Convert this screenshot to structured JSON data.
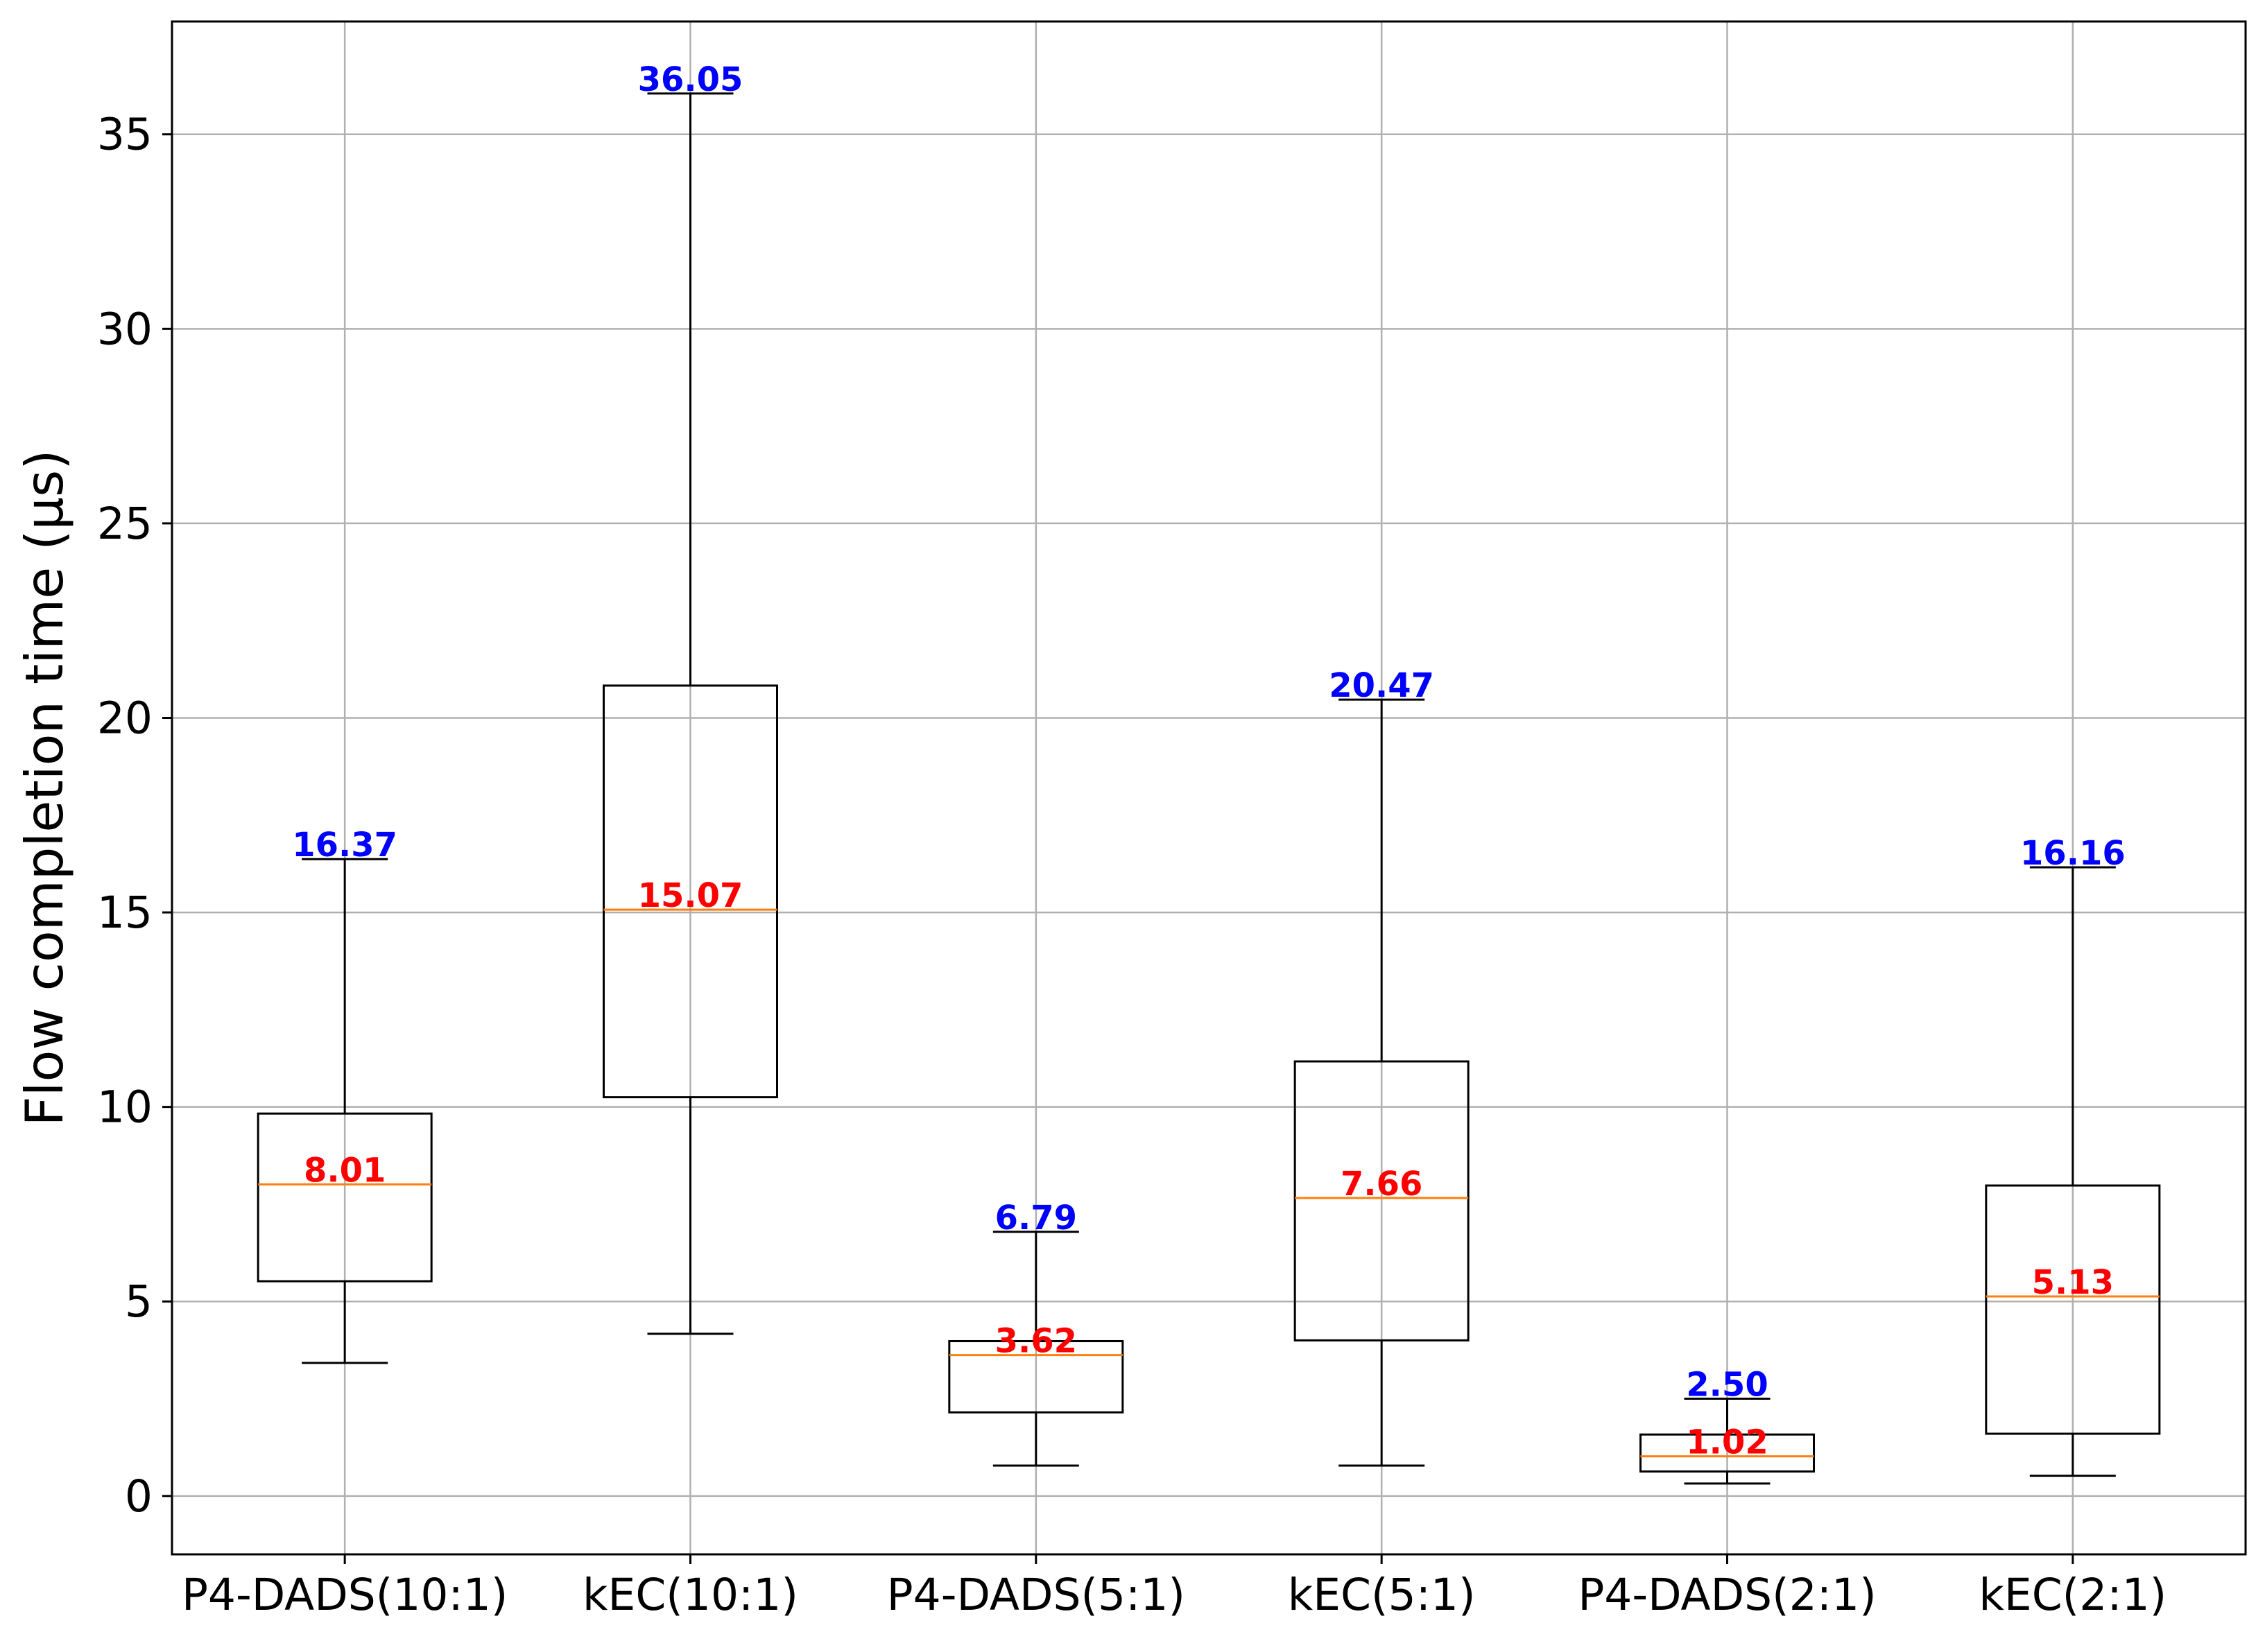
{
  "chart_data": {
    "type": "box",
    "ylabel": "Flow completion time (μs)",
    "xlabel": "",
    "ylim": [
      -1.5,
      37.9
    ],
    "yticks": [
      0,
      5,
      10,
      15,
      20,
      25,
      30,
      35
    ],
    "grid": true,
    "colors": {
      "box": "#000000",
      "median": "#ff7f0e",
      "median_label": "#ff0000",
      "max_label": "#0000ff",
      "grid": "#b0b0b0"
    },
    "boxes": [
      {
        "category": "P4-DADS(10:1)",
        "whisker_low": 3.42,
        "q1": 5.52,
        "median": 8.01,
        "q3": 9.83,
        "whisker_high": 16.37,
        "median_label": "8.01",
        "max_label": "16.37"
      },
      {
        "category": "kEC(10:1)",
        "whisker_low": 4.17,
        "q1": 10.25,
        "median": 15.07,
        "q3": 20.83,
        "whisker_high": 36.05,
        "median_label": "15.07",
        "max_label": "36.05"
      },
      {
        "category": "P4-DADS(5:1)",
        "whisker_low": 0.78,
        "q1": 2.15,
        "median": 3.62,
        "q3": 3.98,
        "whisker_high": 6.79,
        "median_label": "3.62",
        "max_label": "6.79"
      },
      {
        "category": "kEC(5:1)",
        "whisker_low": 0.78,
        "q1": 4.0,
        "median": 7.66,
        "q3": 11.17,
        "whisker_high": 20.47,
        "median_label": "7.66",
        "max_label": "20.47"
      },
      {
        "category": "P4-DADS(2:1)",
        "whisker_low": 0.32,
        "q1": 0.63,
        "median": 1.02,
        "q3": 1.58,
        "whisker_high": 2.5,
        "median_label": "1.02",
        "max_label": "2.50"
      },
      {
        "category": "kEC(2:1)",
        "whisker_low": 0.52,
        "q1": 1.6,
        "median": 5.13,
        "q3": 7.98,
        "whisker_high": 16.16,
        "median_label": "5.13",
        "max_label": "16.16"
      }
    ]
  }
}
